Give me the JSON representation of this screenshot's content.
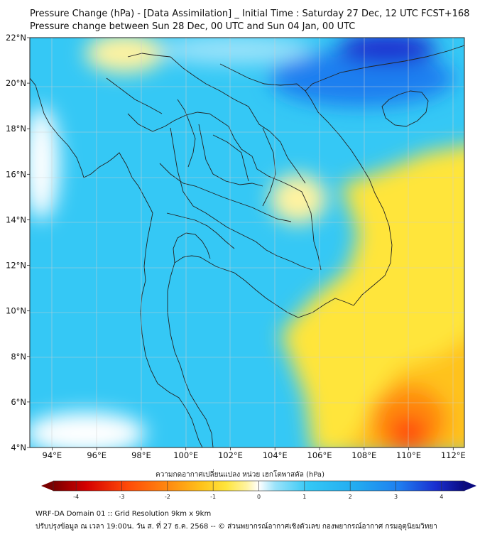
{
  "title": {
    "line1": "Pressure Change (hPa) - [Data Assimilation] _ Initial Time : Saturday 27 Dec, 12 UTC FCST+168",
    "line2": "Pressure change between Sun 28 Dec, 00 UTC and Sun 04 Jan, 00 UTC"
  },
  "axes": {
    "lat_labels": [
      "22°N",
      "20°N",
      "18°N",
      "16°N",
      "14°N",
      "12°N",
      "10°N",
      "8°N",
      "6°N",
      "4°N"
    ],
    "lon_labels": [
      "94°E",
      "96°E",
      "98°E",
      "100°E",
      "102°E",
      "104°E",
      "106°E",
      "108°E",
      "110°E",
      "112°E"
    ],
    "lat_range": [
      4,
      22
    ],
    "lon_range": [
      93,
      112.5
    ]
  },
  "colorbar": {
    "title": "ความกดอากาศเปลี่ยนแปลง หน่วย เฮกโตพาสคัล (hPa)",
    "ticks": [
      "-4",
      "-3",
      "-2",
      "-1",
      "0",
      "1",
      "2",
      "3",
      "4"
    ],
    "range": [
      -4.5,
      4.5
    ]
  },
  "footer": {
    "line1": "WRF-DA Domain 01 :: Grid Resolution 9km x 9km",
    "line2": "ปรับปรุงข้อมูล ณ เวลา 19:00น. วัน ส. ที่ 27 ธ.ค. 2568 -- © ส่วนพยากรณ์อากาศเชิงตัวเลข กองพยากรณ์อากาศ กรมอุตุนิยมวิทยา"
  },
  "colors": {
    "deep_blue": "#1a2fd0",
    "blue": "#1f7ff0",
    "cyan": "#35c8f5",
    "light_cyan": "#9be3fa",
    "white": "#ffffff",
    "light_yellow": "#fff3a0",
    "yellow": "#ffe53b",
    "gold": "#ffc21a",
    "orange": "#ff8a10",
    "red_orange": "#ff4a08",
    "dark_red": "#7a0000",
    "dark_navy": "#0a0a80",
    "coastline": "#222222",
    "grid": "#c8c8c8"
  }
}
